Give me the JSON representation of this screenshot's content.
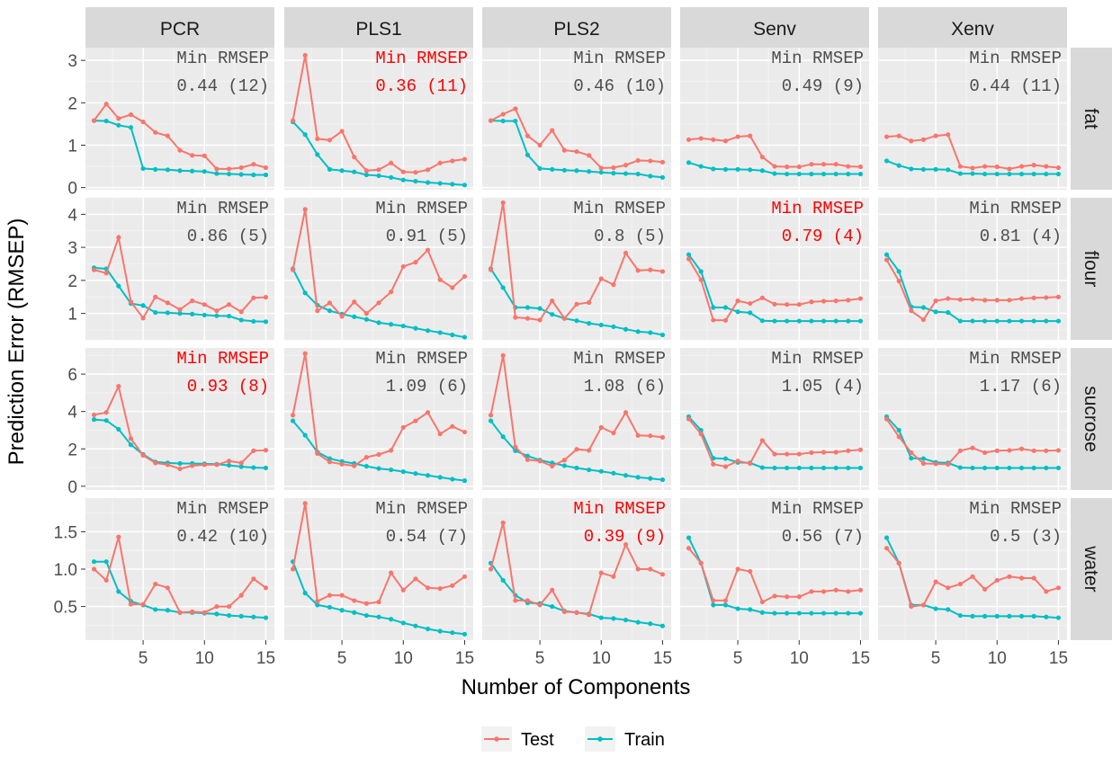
{
  "chart_data": {
    "type": "line",
    "xlabel": "Number of Components",
    "ylabel": "Prediction Error (RMSEP)",
    "x": [
      1,
      2,
      3,
      4,
      5,
      6,
      7,
      8,
      9,
      10,
      11,
      12,
      13,
      14,
      15
    ],
    "xticks": [
      5,
      10,
      15
    ],
    "columns": [
      "PCR",
      "PLS1",
      "PLS2",
      "Senv",
      "Xenv"
    ],
    "rows": [
      {
        "name": "fat",
        "ylim": [
          -0.05,
          3.3
        ],
        "yticks": [
          0,
          1,
          2,
          3
        ],
        "yticklabels": [
          "0",
          "1",
          "2",
          "3"
        ]
      },
      {
        "name": "flour",
        "ylim": [
          0.2,
          4.5
        ],
        "yticks": [
          1,
          2,
          3,
          4
        ],
        "yticklabels": [
          "1",
          "2",
          "3",
          "4"
        ]
      },
      {
        "name": "sucrose",
        "ylim": [
          -0.2,
          7.4
        ],
        "yticks": [
          0,
          2,
          4,
          6
        ],
        "yticklabels": [
          "0",
          "2",
          "4",
          "6"
        ]
      },
      {
        "name": "water",
        "ylim": [
          0.05,
          1.95
        ],
        "yticks": [
          0.5,
          1.0,
          1.5
        ],
        "yticklabels": [
          "0.5",
          "1.0",
          "1.5"
        ]
      }
    ],
    "legend": {
      "position": "bottom",
      "items": [
        {
          "name": "Test",
          "color": "#F8766D"
        },
        {
          "name": "Train",
          "color": "#00BFC4"
        }
      ]
    },
    "colors": {
      "test": "#F8766D",
      "train": "#00BFC4",
      "highlight": "#FF0000",
      "annotation": "#4D4D4D"
    },
    "panels": [
      {
        "row": "fat",
        "col": "PCR",
        "annot_title": "Min RMSEP",
        "annot_value": "0.44 (12)",
        "highlight": false,
        "test": [
          1.58,
          1.97,
          1.63,
          1.72,
          1.55,
          1.3,
          1.22,
          0.88,
          0.76,
          0.75,
          0.44,
          0.44,
          0.47,
          0.55,
          0.47
        ],
        "train": [
          1.58,
          1.57,
          1.47,
          1.42,
          0.45,
          0.43,
          0.42,
          0.4,
          0.39,
          0.38,
          0.33,
          0.32,
          0.31,
          0.3,
          0.3
        ]
      },
      {
        "row": "fat",
        "col": "PLS1",
        "annot_title": "Min RMSEP",
        "annot_value": "0.36 (11)",
        "highlight": true,
        "test": [
          1.58,
          3.12,
          1.15,
          1.12,
          1.33,
          0.72,
          0.4,
          0.42,
          0.58,
          0.37,
          0.36,
          0.42,
          0.58,
          0.63,
          0.67
        ],
        "train": [
          1.55,
          1.25,
          0.78,
          0.43,
          0.4,
          0.37,
          0.3,
          0.28,
          0.24,
          0.18,
          0.15,
          0.12,
          0.1,
          0.08,
          0.06
        ]
      },
      {
        "row": "fat",
        "col": "PLS2",
        "annot_title": "Min RMSEP",
        "annot_value": "0.46 (10)",
        "highlight": false,
        "test": [
          1.58,
          1.73,
          1.86,
          1.22,
          1.0,
          1.35,
          0.88,
          0.85,
          0.76,
          0.46,
          0.47,
          0.53,
          0.64,
          0.63,
          0.6
        ],
        "train": [
          1.58,
          1.57,
          1.57,
          0.77,
          0.45,
          0.43,
          0.41,
          0.4,
          0.38,
          0.36,
          0.34,
          0.33,
          0.32,
          0.27,
          0.24
        ]
      },
      {
        "row": "fat",
        "col": "Senv",
        "annot_title": "Min RMSEP",
        "annot_value": "0.49 (9)",
        "highlight": false,
        "test": [
          1.13,
          1.16,
          1.13,
          1.1,
          1.2,
          1.22,
          0.72,
          0.5,
          0.49,
          0.49,
          0.55,
          0.55,
          0.55,
          0.5,
          0.49
        ],
        "train": [
          0.59,
          0.5,
          0.44,
          0.43,
          0.43,
          0.42,
          0.4,
          0.33,
          0.32,
          0.32,
          0.32,
          0.32,
          0.32,
          0.32,
          0.32
        ]
      },
      {
        "row": "fat",
        "col": "Xenv",
        "annot_title": "Min RMSEP",
        "annot_value": "0.44 (11)",
        "highlight": false,
        "test": [
          1.2,
          1.22,
          1.1,
          1.13,
          1.22,
          1.25,
          0.5,
          0.46,
          0.5,
          0.49,
          0.44,
          0.5,
          0.53,
          0.5,
          0.47
        ],
        "train": [
          0.63,
          0.52,
          0.44,
          0.43,
          0.43,
          0.42,
          0.33,
          0.33,
          0.32,
          0.32,
          0.32,
          0.32,
          0.32,
          0.32,
          0.32
        ]
      },
      {
        "row": "flour",
        "col": "PCR",
        "annot_title": "Min RMSEP",
        "annot_value": "0.86 (5)",
        "highlight": false,
        "test": [
          2.32,
          2.22,
          3.3,
          1.35,
          0.86,
          1.5,
          1.32,
          1.12,
          1.38,
          1.27,
          1.08,
          1.27,
          1.05,
          1.47,
          1.49
        ],
        "train": [
          2.38,
          2.35,
          1.83,
          1.3,
          1.24,
          1.03,
          1.02,
          1.0,
          0.98,
          0.95,
          0.93,
          0.92,
          0.8,
          0.76,
          0.75
        ]
      },
      {
        "row": "flour",
        "col": "PLS1",
        "annot_title": "Min RMSEP",
        "annot_value": "0.91 (5)",
        "highlight": false,
        "test": [
          2.32,
          4.15,
          1.08,
          1.32,
          0.91,
          1.35,
          1.0,
          1.32,
          1.65,
          2.42,
          2.55,
          2.92,
          2.02,
          1.78,
          2.12
        ],
        "train": [
          2.35,
          1.62,
          1.25,
          1.08,
          0.98,
          0.9,
          0.82,
          0.72,
          0.67,
          0.62,
          0.55,
          0.48,
          0.42,
          0.35,
          0.28
        ]
      },
      {
        "row": "flour",
        "col": "PLS2",
        "annot_title": "Min RMSEP",
        "annot_value": "0.8 (5)",
        "highlight": false,
        "test": [
          2.32,
          4.35,
          0.88,
          0.85,
          0.8,
          1.38,
          0.85,
          1.28,
          1.33,
          2.05,
          1.87,
          2.83,
          2.3,
          2.32,
          2.27
        ],
        "train": [
          2.35,
          1.78,
          1.18,
          1.18,
          1.15,
          0.97,
          0.85,
          0.78,
          0.7,
          0.65,
          0.6,
          0.52,
          0.45,
          0.42,
          0.35
        ]
      },
      {
        "row": "flour",
        "col": "Senv",
        "annot_title": "Min RMSEP",
        "annot_value": "0.79 (4)",
        "highlight": true,
        "test": [
          2.65,
          2.02,
          0.8,
          0.79,
          1.38,
          1.3,
          1.47,
          1.28,
          1.27,
          1.27,
          1.35,
          1.37,
          1.38,
          1.4,
          1.45
        ],
        "train": [
          2.78,
          2.27,
          1.18,
          1.18,
          1.05,
          1.02,
          0.78,
          0.77,
          0.77,
          0.77,
          0.77,
          0.77,
          0.77,
          0.77,
          0.77
        ]
      },
      {
        "row": "flour",
        "col": "Xenv",
        "annot_title": "Min RMSEP",
        "annot_value": "0.81 (4)",
        "highlight": false,
        "test": [
          2.62,
          1.98,
          1.08,
          0.81,
          1.38,
          1.45,
          1.42,
          1.43,
          1.4,
          1.4,
          1.4,
          1.45,
          1.47,
          1.48,
          1.5
        ],
        "train": [
          2.78,
          2.27,
          1.2,
          1.18,
          1.05,
          1.03,
          0.77,
          0.77,
          0.77,
          0.77,
          0.77,
          0.77,
          0.77,
          0.77,
          0.77
        ]
      },
      {
        "row": "sucrose",
        "col": "PCR",
        "annot_title": "Min RMSEP",
        "annot_value": "0.93 (8)",
        "highlight": true,
        "test": [
          3.82,
          3.95,
          5.35,
          2.55,
          1.65,
          1.25,
          1.15,
          0.93,
          1.1,
          1.15,
          1.15,
          1.35,
          1.25,
          1.9,
          1.93
        ],
        "train": [
          3.57,
          3.52,
          3.05,
          2.22,
          1.7,
          1.3,
          1.25,
          1.22,
          1.22,
          1.2,
          1.18,
          1.12,
          1.05,
          1.0,
          0.98
        ]
      },
      {
        "row": "sucrose",
        "col": "PLS1",
        "annot_title": "Min RMSEP",
        "annot_value": "1.09 (6)",
        "highlight": false,
        "test": [
          3.8,
          7.1,
          1.75,
          1.3,
          1.18,
          1.09,
          1.55,
          1.7,
          1.92,
          3.15,
          3.5,
          3.95,
          2.8,
          3.2,
          2.9
        ],
        "train": [
          3.5,
          2.73,
          1.83,
          1.48,
          1.33,
          1.22,
          1.07,
          0.95,
          0.88,
          0.78,
          0.68,
          0.58,
          0.48,
          0.38,
          0.3
        ]
      },
      {
        "row": "sucrose",
        "col": "PLS2",
        "annot_title": "Min RMSEP",
        "annot_value": "1.08 (6)",
        "highlight": false,
        "test": [
          3.8,
          7.0,
          2.1,
          1.42,
          1.35,
          1.08,
          1.4,
          1.98,
          1.92,
          3.15,
          2.85,
          3.95,
          2.72,
          2.7,
          2.62
        ],
        "train": [
          3.5,
          2.65,
          1.9,
          1.62,
          1.4,
          1.25,
          1.1,
          0.98,
          0.88,
          0.8,
          0.7,
          0.58,
          0.48,
          0.42,
          0.35
        ]
      },
      {
        "row": "sucrose",
        "col": "Senv",
        "annot_title": "Min RMSEP",
        "annot_value": "1.05 (4)",
        "highlight": false,
        "test": [
          3.6,
          2.8,
          1.18,
          1.05,
          1.35,
          1.22,
          2.45,
          1.72,
          1.72,
          1.72,
          1.8,
          1.82,
          1.82,
          1.9,
          1.95
        ],
        "train": [
          3.72,
          3.0,
          1.5,
          1.48,
          1.28,
          1.25,
          1.0,
          0.98,
          0.98,
          0.98,
          0.98,
          0.98,
          0.98,
          0.98,
          0.98
        ]
      },
      {
        "row": "sucrose",
        "col": "Xenv",
        "annot_title": "Min RMSEP",
        "annot_value": "1.17 (6)",
        "highlight": false,
        "test": [
          3.6,
          2.65,
          1.8,
          1.22,
          1.2,
          1.17,
          1.9,
          2.05,
          1.8,
          1.9,
          1.92,
          2.0,
          1.9,
          1.9,
          1.92
        ],
        "train": [
          3.72,
          3.0,
          1.5,
          1.48,
          1.28,
          1.25,
          1.0,
          0.98,
          0.98,
          0.98,
          0.98,
          0.98,
          0.98,
          0.98,
          0.98
        ]
      },
      {
        "row": "water",
        "col": "PCR",
        "annot_title": "Min RMSEP",
        "annot_value": "0.42 (10)",
        "highlight": false,
        "test": [
          1.0,
          0.85,
          1.43,
          0.53,
          0.53,
          0.8,
          0.75,
          0.42,
          0.43,
          0.42,
          0.5,
          0.5,
          0.65,
          0.87,
          0.75
        ],
        "train": [
          1.1,
          1.1,
          0.7,
          0.57,
          0.52,
          0.46,
          0.45,
          0.42,
          0.42,
          0.41,
          0.4,
          0.38,
          0.37,
          0.36,
          0.35
        ]
      },
      {
        "row": "water",
        "col": "PLS1",
        "annot_title": "Min RMSEP",
        "annot_value": "0.54 (7)",
        "highlight": false,
        "test": [
          1.0,
          1.88,
          0.57,
          0.65,
          0.65,
          0.58,
          0.54,
          0.56,
          0.95,
          0.72,
          0.87,
          0.75,
          0.74,
          0.78,
          0.9
        ],
        "train": [
          1.1,
          0.68,
          0.52,
          0.49,
          0.45,
          0.42,
          0.38,
          0.36,
          0.33,
          0.28,
          0.24,
          0.2,
          0.17,
          0.15,
          0.13
        ]
      },
      {
        "row": "water",
        "col": "PLS2",
        "annot_title": "Min RMSEP",
        "annot_value": "0.39 (9)",
        "highlight": true,
        "test": [
          1.0,
          1.62,
          0.58,
          0.58,
          0.52,
          0.72,
          0.43,
          0.42,
          0.39,
          0.95,
          0.9,
          1.33,
          1.0,
          1.0,
          0.93
        ],
        "train": [
          1.08,
          0.85,
          0.65,
          0.55,
          0.54,
          0.5,
          0.44,
          0.42,
          0.4,
          0.35,
          0.34,
          0.32,
          0.29,
          0.27,
          0.24
        ]
      },
      {
        "row": "water",
        "col": "Senv",
        "annot_title": "Min RMSEP",
        "annot_value": "0.56 (7)",
        "highlight": false,
        "test": [
          1.28,
          1.08,
          0.58,
          0.58,
          1.0,
          0.97,
          0.56,
          0.64,
          0.63,
          0.63,
          0.7,
          0.7,
          0.72,
          0.7,
          0.72
        ],
        "train": [
          1.42,
          1.08,
          0.52,
          0.52,
          0.47,
          0.46,
          0.42,
          0.41,
          0.41,
          0.41,
          0.41,
          0.41,
          0.41,
          0.41,
          0.41
        ]
      },
      {
        "row": "water",
        "col": "Xenv",
        "annot_title": "Min RMSEP",
        "annot_value": "0.5 (3)",
        "highlight": false,
        "test": [
          1.28,
          1.08,
          0.5,
          0.52,
          0.83,
          0.75,
          0.8,
          0.9,
          0.73,
          0.85,
          0.9,
          0.88,
          0.88,
          0.7,
          0.75
        ],
        "train": [
          1.42,
          1.08,
          0.52,
          0.52,
          0.47,
          0.46,
          0.38,
          0.37,
          0.37,
          0.37,
          0.37,
          0.37,
          0.37,
          0.36,
          0.35
        ]
      }
    ]
  }
}
